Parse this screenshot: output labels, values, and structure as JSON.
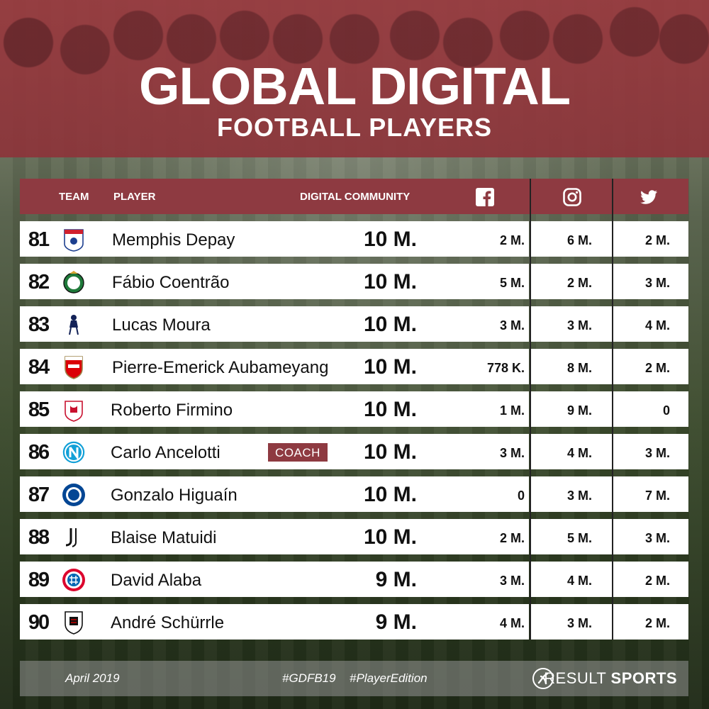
{
  "header": {
    "title": "GLOBAL DIGITAL",
    "subtitle": "FOOTBALL PLAYERS"
  },
  "columns": {
    "team": "TEAM",
    "player": "PLAYER",
    "community": "DIGITAL COMMUNITY",
    "facebook_icon": "facebook-icon",
    "instagram_icon": "instagram-icon",
    "twitter_icon": "twitter-icon"
  },
  "rows": [
    {
      "rank": "81",
      "team_logo": "olympique-lyonnais-crest",
      "player": "Memphis Depay",
      "total": "10 M.",
      "facebook": "2 M.",
      "instagram": "6 M.",
      "twitter": "2 M.",
      "tag": ""
    },
    {
      "rank": "82",
      "team_logo": "rio-ave-crest",
      "player": "Fábio Coentrão",
      "total": "10 M.",
      "facebook": "5 M.",
      "instagram": "2 M.",
      "twitter": "3 M.",
      "tag": ""
    },
    {
      "rank": "83",
      "team_logo": "tottenham-crest",
      "player": "Lucas Moura",
      "total": "10 M.",
      "facebook": "3 M.",
      "instagram": "3 M.",
      "twitter": "4 M.",
      "tag": ""
    },
    {
      "rank": "84",
      "team_logo": "arsenal-crest",
      "player": "Pierre-Emerick Aubameyang",
      "total": "10 M.",
      "facebook": "778 K.",
      "instagram": "8 M.",
      "twitter": "2 M.",
      "tag": ""
    },
    {
      "rank": "85",
      "team_logo": "liverpool-crest",
      "player": "Roberto Firmino",
      "total": "10 M.",
      "facebook": "1 M.",
      "instagram": "9 M.",
      "twitter": "0",
      "tag": ""
    },
    {
      "rank": "86",
      "team_logo": "napoli-crest",
      "player": "Carlo Ancelotti",
      "total": "10 M.",
      "facebook": "3 M.",
      "instagram": "4 M.",
      "twitter": "3 M.",
      "tag": "COACH"
    },
    {
      "rank": "87",
      "team_logo": "chelsea-crest",
      "player": "Gonzalo Higuaín",
      "total": "10 M.",
      "facebook": "0",
      "instagram": "3 M.",
      "twitter": "7 M.",
      "tag": ""
    },
    {
      "rank": "88",
      "team_logo": "juventus-crest",
      "player": "Blaise Matuidi",
      "total": "10 M.",
      "facebook": "2 M.",
      "instagram": "5 M.",
      "twitter": "3 M.",
      "tag": ""
    },
    {
      "rank": "89",
      "team_logo": "bayern-munich-crest",
      "player": "David Alaba",
      "total": "9 M.",
      "facebook": "3 M.",
      "instagram": "4 M.",
      "twitter": "2 M.",
      "tag": ""
    },
    {
      "rank": "90",
      "team_logo": "fulham-crest",
      "player": "André Schürrle",
      "total": "9 M.",
      "facebook": "4 M.",
      "instagram": "3 M.",
      "twitter": "2 M.",
      "tag": ""
    }
  ],
  "footer": {
    "date": "April 2019",
    "hashtag1": "#GDFB19",
    "hashtag2": "#PlayerEdition",
    "brand_light": "RESULT ",
    "brand_bold": "SPORTS"
  },
  "colors": {
    "accent": "#8e3a41",
    "header_bg": "#963a3f",
    "row_bg": "#ffffff",
    "text": "#111111"
  }
}
